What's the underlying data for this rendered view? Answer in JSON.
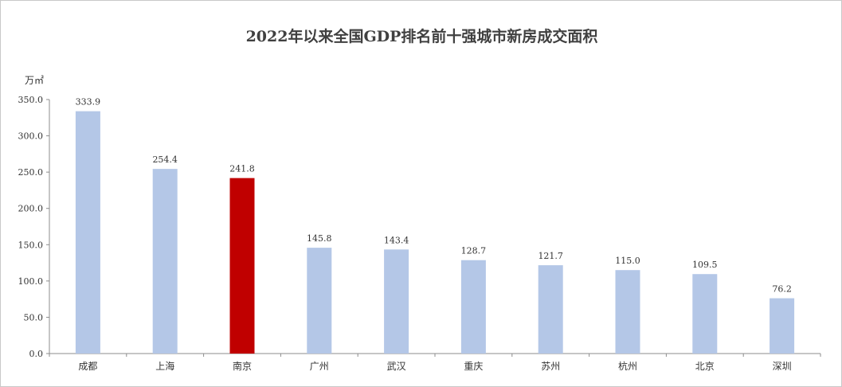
{
  "chart_data": {
    "type": "bar",
    "title": "2022年以来全国GDP排名前十强城市新房成交面积",
    "ylabel": "万㎡",
    "xlabel": "",
    "categories": [
      "成都",
      "上海",
      "南京",
      "广州",
      "武汉",
      "重庆",
      "苏州",
      "杭州",
      "北京",
      "深圳"
    ],
    "values": [
      333.9,
      254.4,
      241.8,
      145.8,
      143.4,
      128.7,
      121.7,
      115.0,
      109.5,
      76.2
    ],
    "data_labels": [
      "333.9",
      "254.4",
      "241.8",
      "145.8",
      "143.4",
      "128.7",
      "121.7",
      "115.0",
      "109.5",
      "76.2"
    ],
    "ylim": [
      0,
      350
    ],
    "yticks": [
      0,
      50,
      100,
      150,
      200,
      250,
      300,
      350
    ],
    "ytick_labels": [
      "0.0",
      "50.0",
      "100.0",
      "150.0",
      "200.0",
      "250.0",
      "300.0",
      "350.0"
    ],
    "grid": false,
    "colors": {
      "default": "#b4c7e7",
      "highlight": "#c00000"
    },
    "highlight_category": "南京"
  }
}
